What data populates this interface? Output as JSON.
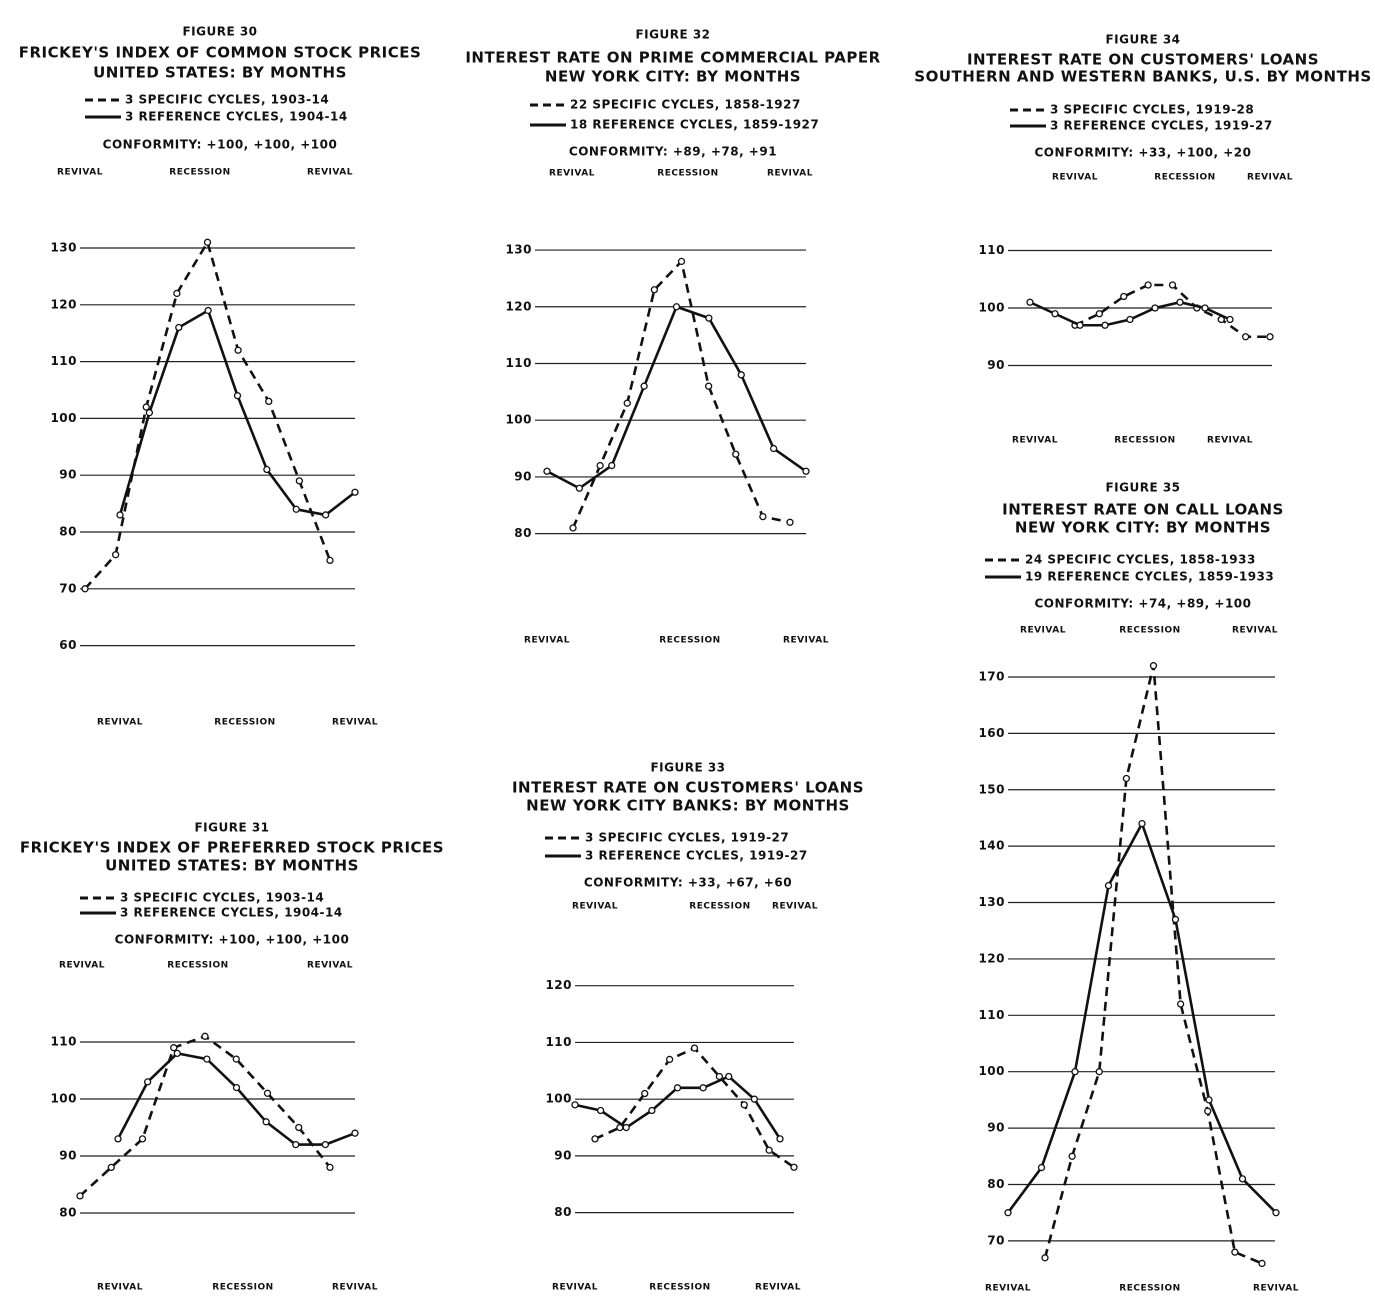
{
  "chart_data": [
    {
      "type": "line",
      "figure": "FIGURE 30",
      "title": "FRICKEY'S INDEX OF COMMON STOCK PRICES",
      "subtitle": "UNITED STATES: BY MONTHS",
      "conformity": "CONFORMITY: +100, +100, +100",
      "top_labels": [
        "REVIVAL",
        "RECESSION",
        "REVIVAL"
      ],
      "bottom_labels": [
        "REVIVAL",
        "RECESSION",
        "REVIVAL"
      ],
      "series": [
        {
          "name": "3 SPECIFIC CYCLES, 1903-14",
          "color": "#111111",
          "dashed": true,
          "values": [
            70,
            76,
            102,
            122,
            131,
            112,
            103,
            89,
            75
          ]
        },
        {
          "name": "3 REFERENCE CYCLES, 1904-14",
          "color": "#111111",
          "dashed": false,
          "values": [
            83,
            101,
            116,
            119,
            104,
            91,
            84,
            83,
            87
          ]
        }
      ],
      "ylim": [
        55,
        140
      ],
      "yticks": [
        60,
        70,
        80,
        90,
        100,
        110,
        120,
        130
      ],
      "grid": true
    },
    {
      "type": "line",
      "figure": "FIGURE 31",
      "title": "FRICKEY'S INDEX OF PREFERRED STOCK PRICES",
      "subtitle": "UNITED STATES: BY MONTHS",
      "conformity": "CONFORMITY: +100, +100, +100",
      "top_labels": [
        "REVIVAL",
        "RECESSION",
        "REVIVAL"
      ],
      "bottom_labels": [
        "REVIVAL",
        "RECESSION",
        "REVIVAL"
      ],
      "series": [
        {
          "name": "3 SPECIFIC CYCLES, 1903-14",
          "color": "#111111",
          "dashed": true,
          "values": [
            83,
            88,
            93,
            109,
            111,
            107,
            101,
            95,
            88
          ]
        },
        {
          "name": "3 REFERENCE CYCLES, 1904-14",
          "color": "#111111",
          "dashed": false,
          "values": [
            93,
            103,
            108,
            107,
            102,
            96,
            92,
            92,
            94
          ]
        }
      ],
      "ylim": [
        75,
        122
      ],
      "yticks": [
        80,
        90,
        100,
        110
      ],
      "grid": true
    },
    {
      "type": "line",
      "figure": "FIGURE 32",
      "title": "INTEREST RATE ON PRIME COMMERCIAL PAPER",
      "subtitle": "NEW YORK CITY: BY MONTHS",
      "conformity": "CONFORMITY: +89, +78, +91",
      "top_labels": [
        "REVIVAL",
        "RECESSION",
        "REVIVAL"
      ],
      "bottom_labels": [
        "REVIVAL",
        "RECESSION",
        "REVIVAL"
      ],
      "series": [
        {
          "name": "22 SPECIFIC CYCLES, 1858-1927",
          "color": "#111111",
          "dashed": true,
          "values": [
            81,
            92,
            103,
            123,
            128,
            106,
            94,
            83,
            82
          ]
        },
        {
          "name": "18 REFERENCE CYCLES, 1859-1927",
          "color": "#111111",
          "dashed": false,
          "values": [
            91,
            88,
            92,
            106,
            120,
            118,
            108,
            95,
            91
          ]
        }
      ],
      "ylim": [
        75,
        142
      ],
      "yticks": [
        80,
        90,
        100,
        110,
        120,
        130
      ],
      "grid": true
    },
    {
      "type": "line",
      "figure": "FIGURE 33",
      "title": "INTEREST RATE ON CUSTOMERS' LOANS",
      "subtitle": "NEW YORK CITY BANKS: BY MONTHS",
      "conformity": "CONFORMITY: +33, +67, +60",
      "top_labels": [
        "REVIVAL",
        "RECESSION",
        "REVIVAL"
      ],
      "bottom_labels": [
        "REVIVAL",
        "RECESSION",
        "REVIVAL"
      ],
      "series": [
        {
          "name": "3 SPECIFIC CYCLES, 1919-27",
          "color": "#111111",
          "dashed": true,
          "values": [
            93,
            95,
            101,
            107,
            109,
            104,
            99,
            91,
            88
          ]
        },
        {
          "name": "3 REFERENCE CYCLES, 1919-27",
          "color": "#111111",
          "dashed": false,
          "values": [
            99,
            98,
            95,
            98,
            102,
            102,
            104,
            100,
            93
          ]
        }
      ],
      "ylim": [
        75,
        127
      ],
      "yticks": [
        80,
        90,
        100,
        110,
        120
      ],
      "grid": true
    },
    {
      "type": "line",
      "figure": "FIGURE 34",
      "title": "INTEREST RATE ON CUSTOMERS' LOANS",
      "subtitle": "SOUTHERN AND WESTERN BANKS, U.S. BY MONTHS",
      "conformity": "CONFORMITY: +33, +100, +20",
      "top_labels": [
        "REVIVAL",
        "RECESSION",
        "REVIVAL"
      ],
      "bottom_labels": [
        "REVIVAL",
        "RECESSION",
        "REVIVAL"
      ],
      "series": [
        {
          "name": "3 SPECIFIC CYCLES, 1919-28",
          "color": "#111111",
          "dashed": true,
          "values": [
            97,
            99,
            102,
            104,
            104,
            100,
            98,
            95,
            95
          ]
        },
        {
          "name": "3 REFERENCE CYCLES, 1919-27",
          "color": "#111111",
          "dashed": false,
          "values": [
            101,
            99,
            97,
            97,
            98,
            100,
            101,
            100,
            98
          ]
        }
      ],
      "ylim": [
        84,
        118
      ],
      "yticks": [
        90,
        100,
        110
      ],
      "grid": true
    },
    {
      "type": "line",
      "figure": "FIGURE 35",
      "title": "INTEREST RATE ON CALL LOANS",
      "subtitle": "NEW YORK CITY: BY MONTHS",
      "conformity": "CONFORMITY: +74, +89, +100",
      "top_labels": [
        "REVIVAL",
        "RECESSION",
        "REVIVAL"
      ],
      "bottom_labels": [
        "REVIVAL",
        "RECESSION",
        "REVIVAL"
      ],
      "series": [
        {
          "name": "24 SPECIFIC CYCLES, 1858-1933",
          "color": "#111111",
          "dashed": true,
          "values": [
            67,
            85,
            100,
            152,
            172,
            112,
            93,
            68,
            66
          ]
        },
        {
          "name": "19 REFERENCE CYCLES, 1859-1933",
          "color": "#111111",
          "dashed": false,
          "values": [
            75,
            83,
            100,
            133,
            144,
            127,
            95,
            81,
            75
          ]
        }
      ],
      "ylim": [
        62,
        182
      ],
      "yticks": [
        70,
        80,
        90,
        100,
        110,
        120,
        130,
        140,
        150,
        160,
        170
      ],
      "grid": true
    }
  ]
}
